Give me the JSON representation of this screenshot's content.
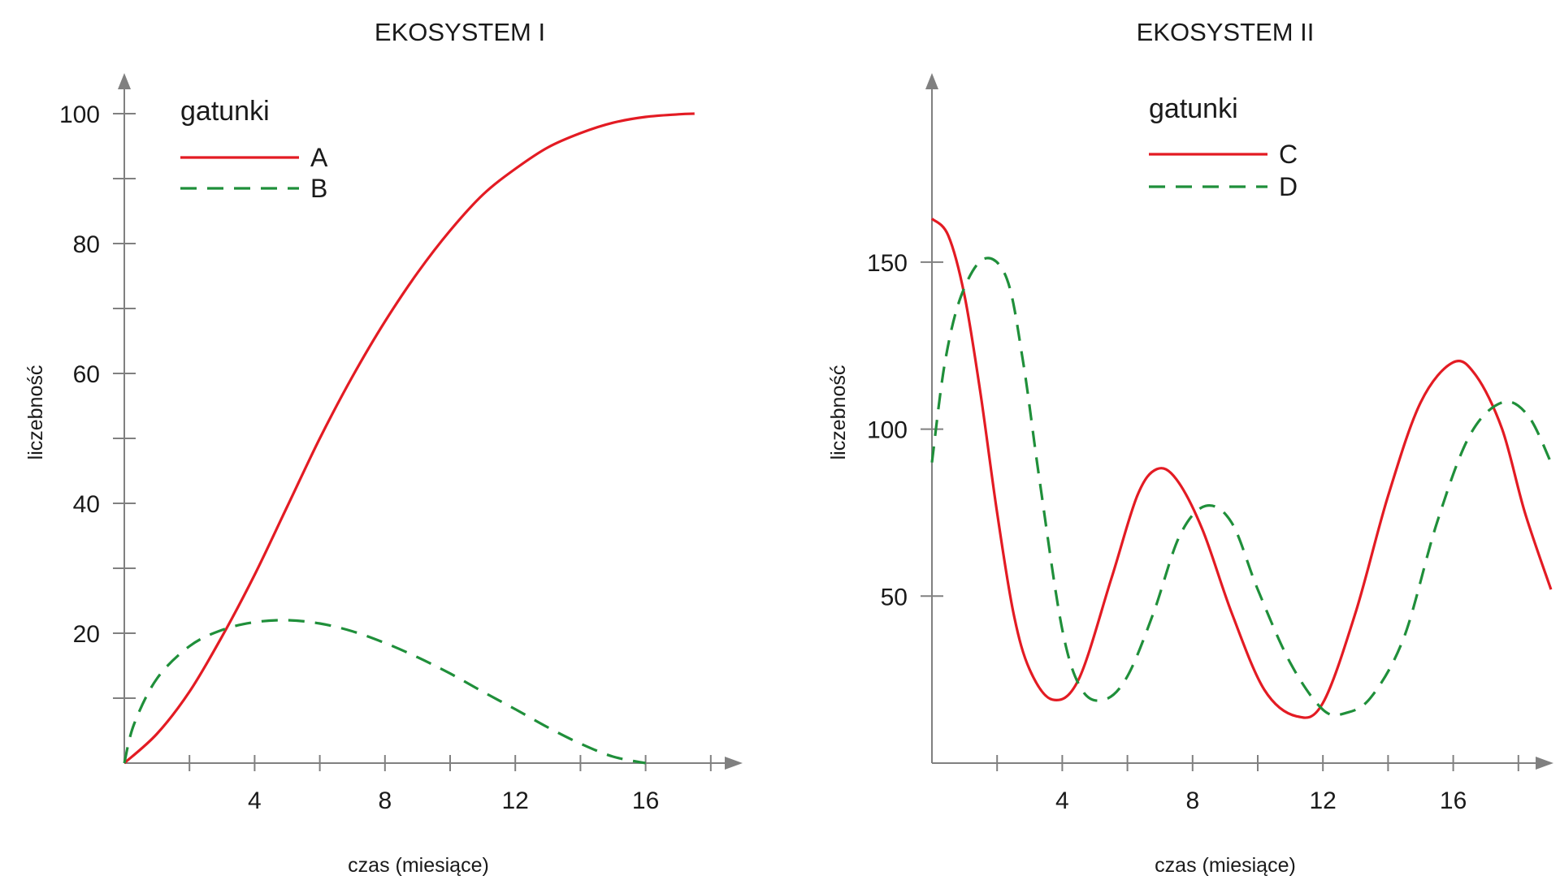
{
  "chart_data": [
    {
      "type": "line",
      "title": "EKOSYSTEM I",
      "xlabel": "czas (miesiące)",
      "ylabel": "liczebność",
      "xlim": [
        0,
        19
      ],
      "ylim": [
        0,
        100
      ],
      "x_ticks": [
        4,
        8,
        12,
        16
      ],
      "x_minor_ticks": [
        2,
        4,
        6,
        8,
        10,
        12,
        14,
        16,
        18
      ],
      "y_ticks": [
        20,
        40,
        60,
        80,
        100
      ],
      "y_minor_ticks": [
        10,
        20,
        30,
        40,
        50,
        60,
        70,
        80,
        90,
        100
      ],
      "legend": {
        "title": "gatunki",
        "position": "top-left"
      },
      "series": [
        {
          "name": "A",
          "style": "solid",
          "color": "#e31b23",
          "x": [
            0,
            1,
            2,
            3,
            4,
            5,
            6,
            7,
            8,
            9,
            10,
            11,
            12,
            13,
            14,
            15,
            16,
            17,
            17.5
          ],
          "y": [
            0,
            4.5,
            11,
            19.5,
            29,
            39.5,
            50,
            59.5,
            68,
            75.5,
            82,
            87.5,
            91.5,
            94.8,
            97,
            98.6,
            99.5,
            99.9,
            100
          ]
        },
        {
          "name": "B",
          "style": "dashed",
          "color": "#1f8f3a",
          "x": [
            0,
            0.3,
            1,
            2,
            3,
            4,
            5,
            6,
            7,
            8,
            9,
            10,
            11,
            12,
            13,
            14,
            15,
            16
          ],
          "y": [
            0,
            6,
            13,
            18,
            20.5,
            21.7,
            22,
            21.5,
            20.3,
            18.5,
            16.3,
            13.8,
            11,
            8.3,
            5.5,
            3,
            1,
            0
          ]
        }
      ]
    },
    {
      "type": "line",
      "title": "EKOSYSTEM II",
      "xlabel": "czas (miesiące)",
      "ylabel": "liczebność",
      "xlim": [
        0,
        19
      ],
      "ylim": [
        0,
        175
      ],
      "x_ticks": [
        4,
        8,
        12,
        16
      ],
      "x_minor_ticks": [
        2,
        4,
        6,
        8,
        10,
        12,
        14,
        16,
        18
      ],
      "y_ticks": [
        50,
        100,
        150
      ],
      "legend": {
        "title": "gatunki",
        "position": "top-center"
      },
      "series": [
        {
          "name": "C",
          "style": "solid",
          "color": "#e31b23",
          "x": [
            0,
            0.5,
            1,
            1.5,
            2,
            2.5,
            3,
            3.7,
            4.5,
            5.5,
            6.3,
            6.9,
            7.5,
            8.3,
            9.2,
            10.2,
            11.2,
            12,
            13,
            14,
            15,
            16,
            16.7,
            17.5,
            18.2,
            19
          ],
          "y": [
            163,
            158,
            140,
            110,
            75,
            45,
            28,
            19,
            25,
            55,
            80,
            88,
            85,
            70,
            45,
            22,
            14,
            18,
            45,
            80,
            108,
            120,
            116,
            100,
            75,
            52
          ]
        },
        {
          "name": "D",
          "style": "dashed",
          "color": "#1f8f3a",
          "x": [
            0,
            0.4,
            0.9,
            1.6,
            2.3,
            2.8,
            3.3,
            4,
            4.6,
            5.3,
            6,
            6.8,
            7.6,
            8.4,
            9.2,
            10,
            11,
            12,
            12.7,
            13.5,
            14.5,
            15.5,
            16.5,
            17.5,
            18.3,
            19
          ],
          "y": [
            90,
            120,
            140,
            151,
            145,
            120,
            85,
            40,
            22,
            19,
            26,
            45,
            68,
            77,
            72,
            52,
            30,
            16,
            15,
            20,
            38,
            72,
            98,
            108,
            104,
            90
          ]
        }
      ]
    }
  ]
}
